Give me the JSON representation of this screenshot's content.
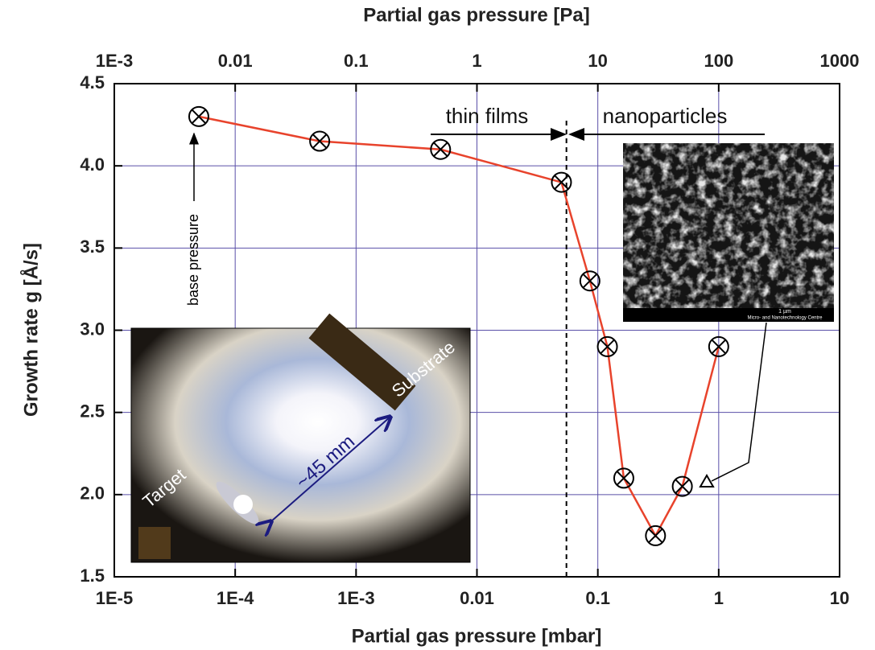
{
  "chart_data": {
    "type": "line",
    "xlabel": "Partial gas pressure [mbar]",
    "x2label": "Partial gas pressure [Pa]",
    "ylabel": "Growth rate g [Å/s]",
    "xscale": "log",
    "xlim": [
      1e-05,
      10
    ],
    "xticks": [
      {
        "value": 1e-05,
        "label": "1E-5"
      },
      {
        "value": 0.0001,
        "label": "1E-4"
      },
      {
        "value": 0.001,
        "label": "1E-3"
      },
      0.01,
      0.1,
      1,
      10
    ],
    "x2lim": [
      0.001,
      1000
    ],
    "x2ticks": [
      {
        "value": 0.001,
        "label": "1E-3"
      },
      0.01,
      0.1,
      1,
      10,
      100,
      1000
    ],
    "ylim": [
      1.5,
      4.5
    ],
    "yticks": [
      1.5,
      {
        "value": 2,
        "label": "2.0"
      },
      2.5,
      {
        "value": 3,
        "label": "3.0"
      },
      3.5,
      {
        "value": 4,
        "label": "4.0"
      },
      4.5
    ],
    "grid": true,
    "color": "#e8432c",
    "x": [
      5e-05,
      0.0005,
      0.005,
      0.05,
      0.086,
      0.12,
      0.164,
      0.3,
      0.5,
      1
    ],
    "values": [
      4.3,
      4.15,
      4.1,
      3.9,
      3.3,
      2.9,
      2.1,
      1.75,
      2.05,
      2.9
    ],
    "divider": 0.055,
    "annotations": {
      "thin_films": "thin films",
      "nanoparticles": "nanoparticles",
      "base_pressure": "base pressure",
      "target": "Target",
      "substrate": "Substrate",
      "distance": "~45 mm",
      "scale_bar": "1 µm",
      "sem_footer": "Micro- and Nanotechnology Centre"
    }
  }
}
